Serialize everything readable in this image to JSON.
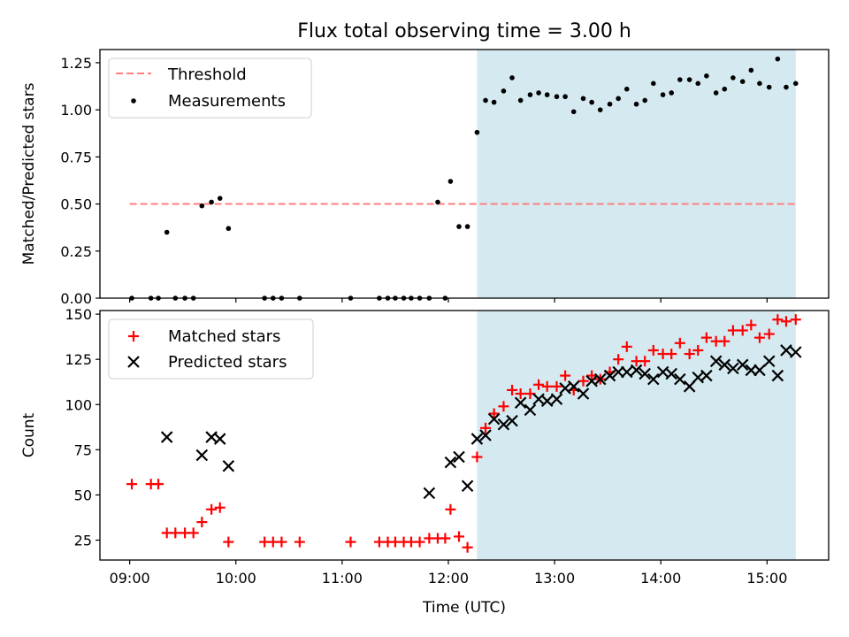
{
  "chart_data": {
    "type": "scatter",
    "title": "Flux total observing time = 3.00 h",
    "x_tick_labels": [
      "09:00",
      "10:00",
      "11:00",
      "12:00",
      "13:00",
      "14:00",
      "15:00"
    ],
    "x_tick_values": [
      9.0,
      10.0,
      11.0,
      12.0,
      13.0,
      14.0,
      15.0
    ],
    "xlabel": "Time (UTC)",
    "xlim": [
      8.72,
      15.58
    ],
    "shaded_region": {
      "x": [
        12.27,
        15.27
      ],
      "color": "#d4eaf0"
    },
    "panels": [
      {
        "ylabel": "Matched/Predicted stars",
        "ylim": [
          0,
          1.32
        ],
        "y_ticks": [
          0,
          0.25,
          0.5,
          0.75,
          1.0,
          1.25
        ],
        "y_tick_labels": [
          "0.00",
          "0.25",
          "0.50",
          "0.75",
          "1.00",
          "1.25"
        ],
        "legend_position": "top-left",
        "threshold": {
          "name": "Threshold",
          "y": 0.5,
          "x_range": [
            9.0,
            15.27
          ],
          "color": "#ff7f7f",
          "style": "dashed"
        },
        "series": [
          {
            "name": "Measurements",
            "color": "#000000",
            "marker": "dot",
            "x": [
              9.02,
              9.2,
              9.27,
              9.35,
              9.43,
              9.52,
              9.6,
              9.68,
              9.77,
              9.85,
              9.93,
              10.27,
              10.35,
              10.43,
              10.6,
              11.08,
              11.35,
              11.43,
              11.5,
              11.58,
              11.65,
              11.73,
              11.82,
              11.9,
              11.97,
              12.02,
              12.1,
              12.18,
              12.27,
              12.35,
              12.43,
              12.52,
              12.6,
              12.68,
              12.77,
              12.85,
              12.93,
              13.02,
              13.1,
              13.18,
              13.27,
              13.35,
              13.43,
              13.52,
              13.6,
              13.68,
              13.77,
              13.85,
              13.93,
              14.02,
              14.1,
              14.18,
              14.27,
              14.35,
              14.43,
              14.52,
              14.6,
              14.68,
              14.77,
              14.85,
              14.93,
              15.02,
              15.1,
              15.18,
              15.27
            ],
            "y": [
              0.0,
              0.0,
              0.0,
              0.35,
              0.0,
              0.0,
              0.0,
              0.49,
              0.51,
              0.53,
              0.37,
              0.0,
              0.0,
              0.0,
              0.0,
              0.0,
              0.0,
              0.0,
              0.0,
              0.0,
              0.0,
              0.0,
              0.0,
              0.51,
              0.0,
              0.62,
              0.38,
              0.38,
              0.88,
              1.05,
              1.04,
              1.1,
              1.17,
              1.05,
              1.08,
              1.09,
              1.08,
              1.07,
              1.07,
              0.99,
              1.06,
              1.04,
              1.0,
              1.03,
              1.06,
              1.11,
              1.03,
              1.05,
              1.14,
              1.08,
              1.09,
              1.16,
              1.16,
              1.14,
              1.18,
              1.09,
              1.11,
              1.17,
              1.15,
              1.21,
              1.14,
              1.12,
              1.27,
              1.12,
              1.14
            ]
          }
        ]
      },
      {
        "ylabel": "Count",
        "ylim": [
          14,
          152
        ],
        "y_ticks": [
          25,
          50,
          75,
          100,
          125,
          150
        ],
        "y_tick_labels": [
          "25",
          "50",
          "75",
          "100",
          "125",
          "150"
        ],
        "legend_position": "top-left",
        "series": [
          {
            "name": "Matched stars",
            "color": "#ff0000",
            "marker": "plus",
            "x": [
              9.02,
              9.2,
              9.27,
              9.35,
              9.43,
              9.52,
              9.6,
              9.68,
              9.77,
              9.85,
              9.93,
              10.27,
              10.35,
              10.43,
              10.6,
              11.08,
              11.35,
              11.43,
              11.5,
              11.58,
              11.65,
              11.73,
              11.82,
              11.9,
              11.97,
              12.02,
              12.1,
              12.18,
              12.27,
              12.35,
              12.43,
              12.52,
              12.6,
              12.68,
              12.77,
              12.85,
              12.93,
              13.02,
              13.1,
              13.18,
              13.27,
              13.35,
              13.43,
              13.52,
              13.6,
              13.68,
              13.77,
              13.85,
              13.93,
              14.02,
              14.1,
              14.18,
              14.27,
              14.35,
              14.43,
              14.52,
              14.6,
              14.68,
              14.77,
              14.85,
              14.93,
              15.02,
              15.1,
              15.18,
              15.27
            ],
            "y": [
              56,
              56,
              56,
              29,
              29,
              29,
              29,
              35,
              42,
              43,
              24,
              24,
              24,
              24,
              24,
              24,
              24,
              24,
              24,
              24,
              24,
              24,
              26,
              26,
              26,
              42,
              27,
              21,
              71,
              87,
              95,
              99,
              108,
              106,
              106,
              111,
              110,
              110,
              116,
              108,
              113,
              116,
              114,
              118,
              125,
              132,
              124,
              124,
              130,
              128,
              128,
              134,
              128,
              130,
              137,
              135,
              135,
              141,
              141,
              144,
              137,
              139,
              147,
              146,
              147
            ]
          },
          {
            "name": "Predicted stars",
            "color": "#000000",
            "marker": "x",
            "x": [
              9.35,
              9.68,
              9.77,
              9.85,
              9.93,
              11.82,
              12.02,
              12.1,
              12.18,
              12.27,
              12.35,
              12.43,
              12.52,
              12.6,
              12.68,
              12.77,
              12.85,
              12.93,
              13.02,
              13.1,
              13.18,
              13.27,
              13.35,
              13.43,
              13.52,
              13.6,
              13.68,
              13.77,
              13.85,
              13.93,
              14.02,
              14.1,
              14.18,
              14.27,
              14.35,
              14.43,
              14.52,
              14.6,
              14.68,
              14.77,
              14.85,
              14.93,
              15.02,
              15.1,
              15.18,
              15.27
            ],
            "y": [
              82,
              72,
              82,
              81,
              66,
              51,
              68,
              71,
              55,
              81,
              83,
              92,
              89,
              91,
              101,
              97,
              103,
              102,
              103,
              109,
              110,
              106,
              113,
              114,
              116,
              118,
              118,
              119,
              117,
              114,
              118,
              117,
              114,
              110,
              115,
              116,
              124,
              122,
              120,
              122,
              119,
              119,
              124,
              116,
              130,
              129
            ]
          }
        ]
      }
    ]
  }
}
